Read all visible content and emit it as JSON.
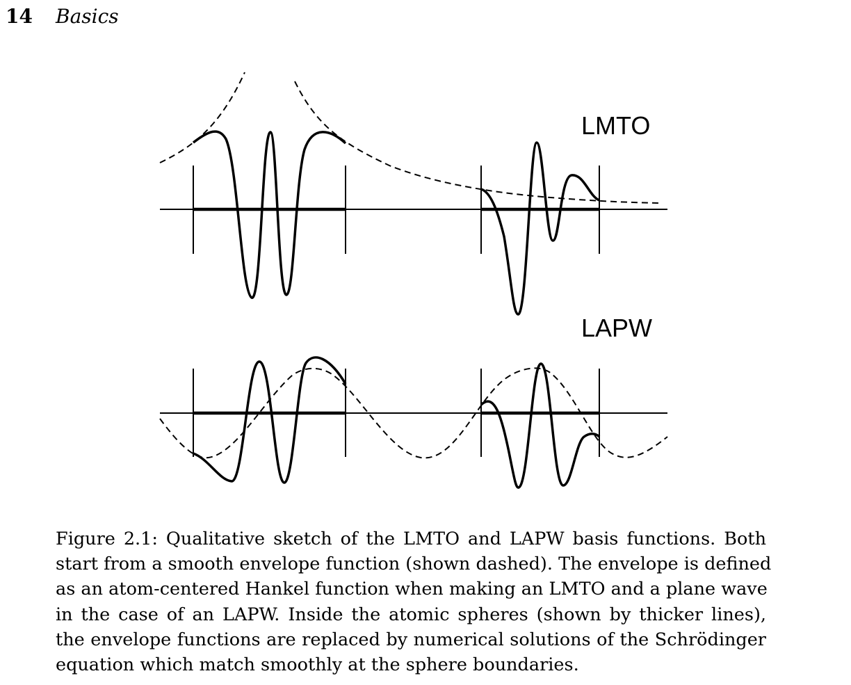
{
  "header": {
    "page_number": "14",
    "section_title": "Basics"
  },
  "figure": {
    "panels": [
      {
        "label": "LMTO",
        "envelope": "Hankel function (dashed)",
        "spheres": 2
      },
      {
        "label": "LAPW",
        "envelope": "plane wave (dashed)",
        "spheres": 2
      }
    ]
  },
  "caption": {
    "lines": [
      "Figure 2.1: Qualitative sketch of the LMTO and LAPW basis functions. Both",
      "start from a smooth envelope function (shown dashed). The envelope is defined",
      "as an atom-centered Hankel function when making an LMTO and a plane wave",
      "in the case of an LAPW. Inside the atomic spheres (shown by thicker lines),",
      "the envelope functions are replaced by numerical solutions of the Schrödinger",
      "equation which match smoothly at the sphere boundaries."
    ]
  }
}
